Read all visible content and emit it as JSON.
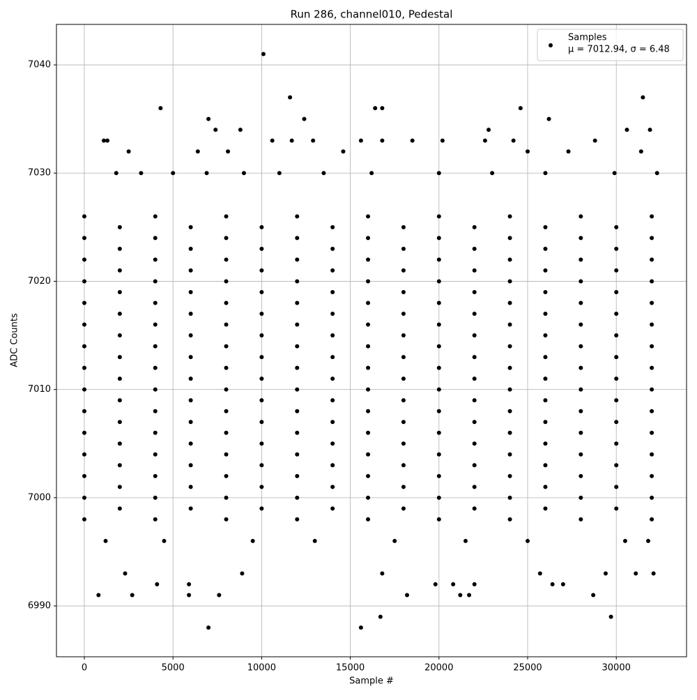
{
  "chart_data": {
    "type": "scatter",
    "title": "Run 286, channel010, Pedestal",
    "x_label": "Sample #",
    "y_label": "ADC Counts",
    "xlim": [
      -1572,
      33962
    ],
    "ylim": [
      6985.3,
      7043.74
    ],
    "xticks": [
      0,
      5000,
      10000,
      15000,
      20000,
      25000,
      30000
    ],
    "yticks": [
      6990,
      7000,
      7010,
      7020,
      7030,
      7040
    ],
    "grid": true,
    "legend_position": "upper right",
    "series": [
      {
        "name": "Samples",
        "stats_label": "μ = 7012.94, σ = 6.48",
        "color": "#000000",
        "x": [
          10100,
          11600,
          31500,
          4300,
          16400,
          16800,
          24600,
          7000,
          12400,
          26200,
          7400,
          8800,
          22800,
          30600,
          31900,
          1100,
          1300,
          10600,
          11700,
          12900,
          15600,
          16800,
          18500,
          20200,
          22600,
          24200,
          28800,
          2500,
          6400,
          8100,
          14600,
          25000,
          27300,
          31400,
          7000,
          15600,
          16700,
          29700,
          800,
          2700,
          5900,
          7600,
          18200,
          21200,
          21700,
          28700,
          2300,
          8900,
          16800,
          25700,
          29400,
          31100,
          32100,
          4100,
          5900,
          19800,
          20800,
          26400,
          27000,
          22000,
          1800,
          3200,
          5000,
          6900,
          9000,
          11000,
          13500,
          16200,
          20000,
          23000,
          26000,
          29900,
          32300,
          1200,
          4500,
          9500,
          13000,
          17500,
          21500,
          25000,
          30500,
          31800,
          0,
          4000,
          8000,
          12000,
          16000,
          20000,
          24000,
          28000,
          32000,
          0,
          4000,
          8000,
          12000,
          16000,
          20000,
          24000,
          28000,
          32000,
          0,
          4000,
          8000,
          12000,
          16000,
          20000,
          24000,
          28000,
          32000,
          0,
          4000,
          8000,
          12000,
          16000,
          20000,
          24000,
          28000,
          32000,
          0,
          4000,
          8000,
          12000,
          16000,
          20000,
          24000,
          28000,
          32000,
          0,
          4000,
          8000,
          12000,
          16000,
          20000,
          24000,
          28000,
          32000,
          0,
          4000,
          8000,
          12000,
          16000,
          20000,
          24000,
          28000,
          32000,
          0,
          4000,
          8000,
          12000,
          16000,
          20000,
          24000,
          28000,
          32000,
          0,
          4000,
          8000,
          12000,
          16000,
          20000,
          24000,
          28000,
          32000,
          0,
          4000,
          8000,
          12000,
          16000,
          20000,
          24000,
          28000,
          32000,
          0,
          4000,
          8000,
          12000,
          16000,
          20000,
          24000,
          28000,
          32000,
          0,
          4000,
          8000,
          12000,
          16000,
          20000,
          24000,
          28000,
          32000,
          0,
          4000,
          8000,
          12000,
          16000,
          20000,
          24000,
          28000,
          32000,
          0,
          4000,
          8000,
          12000,
          16000,
          20000,
          24000,
          28000,
          32000,
          0,
          4000,
          8000,
          12000,
          16000,
          20000,
          24000,
          28000,
          32000,
          2000,
          6000,
          10000,
          14000,
          18000,
          22000,
          26000,
          30000,
          2000,
          6000,
          10000,
          14000,
          18000,
          22000,
          26000,
          30000,
          2000,
          6000,
          10000,
          14000,
          18000,
          22000,
          26000,
          30000,
          2000,
          6000,
          10000,
          14000,
          18000,
          22000,
          26000,
          30000,
          2000,
          6000,
          10000,
          14000,
          18000,
          22000,
          26000,
          30000,
          2000,
          6000,
          10000,
          14000,
          18000,
          22000,
          26000,
          30000,
          2000,
          6000,
          10000,
          14000,
          18000,
          22000,
          26000,
          30000,
          2000,
          6000,
          10000,
          14000,
          18000,
          22000,
          26000,
          30000,
          2000,
          6000,
          10000,
          14000,
          18000,
          22000,
          26000,
          30000,
          2000,
          6000,
          10000,
          14000,
          18000,
          22000,
          26000,
          30000,
          2000,
          6000,
          10000,
          14000,
          18000,
          22000,
          26000,
          30000,
          2000,
          6000,
          10000,
          14000,
          18000,
          22000,
          26000,
          30000,
          2000,
          6000,
          10000,
          14000,
          18000,
          22000,
          26000,
          30000,
          2000,
          6000,
          10000,
          14000,
          18000,
          22000,
          26000,
          30000
        ],
        "values": [
          7041,
          7037,
          7037,
          7036,
          7036,
          7036,
          7036,
          7035,
          7035,
          7035,
          7034,
          7034,
          7034,
          7034,
          7034,
          7033,
          7033,
          7033,
          7033,
          7033,
          7033,
          7033,
          7033,
          7033,
          7033,
          7033,
          7033,
          7032,
          7032,
          7032,
          7032,
          7032,
          7032,
          7032,
          6988,
          6988,
          6989,
          6989,
          6991,
          6991,
          6991,
          6991,
          6991,
          6991,
          6991,
          6991,
          6993,
          6993,
          6993,
          6993,
          6993,
          6993,
          6993,
          6992,
          6992,
          6992,
          6992,
          6992,
          6992,
          6992,
          7030,
          7030,
          7030,
          7030,
          7030,
          7030,
          7030,
          7030,
          7030,
          7030,
          7030,
          7030,
          7030,
          6996,
          6996,
          6996,
          6996,
          6996,
          6996,
          6996,
          6996,
          6996,
          6998,
          6998,
          6998,
          6998,
          6998,
          6998,
          6998,
          6998,
          6998,
          7000,
          7000,
          7000,
          7000,
          7000,
          7000,
          7000,
          7000,
          7000,
          7002,
          7002,
          7002,
          7002,
          7002,
          7002,
          7002,
          7002,
          7002,
          7004,
          7004,
          7004,
          7004,
          7004,
          7004,
          7004,
          7004,
          7004,
          7006,
          7006,
          7006,
          7006,
          7006,
          7006,
          7006,
          7006,
          7006,
          7008,
          7008,
          7008,
          7008,
          7008,
          7008,
          7008,
          7008,
          7008,
          7010,
          7010,
          7010,
          7010,
          7010,
          7010,
          7010,
          7010,
          7010,
          7012,
          7012,
          7012,
          7012,
          7012,
          7012,
          7012,
          7012,
          7012,
          7014,
          7014,
          7014,
          7014,
          7014,
          7014,
          7014,
          7014,
          7014,
          7016,
          7016,
          7016,
          7016,
          7016,
          7016,
          7016,
          7016,
          7016,
          7018,
          7018,
          7018,
          7018,
          7018,
          7018,
          7018,
          7018,
          7018,
          7020,
          7020,
          7020,
          7020,
          7020,
          7020,
          7020,
          7020,
          7020,
          7022,
          7022,
          7022,
          7022,
          7022,
          7022,
          7022,
          7022,
          7022,
          7024,
          7024,
          7024,
          7024,
          7024,
          7024,
          7024,
          7024,
          7024,
          7026,
          7026,
          7026,
          7026,
          7026,
          7026,
          7026,
          7026,
          7026,
          6999,
          6999,
          6999,
          6999,
          6999,
          6999,
          6999,
          6999,
          7001,
          7001,
          7001,
          7001,
          7001,
          7001,
          7001,
          7001,
          7003,
          7003,
          7003,
          7003,
          7003,
          7003,
          7003,
          7003,
          7005,
          7005,
          7005,
          7005,
          7005,
          7005,
          7005,
          7005,
          7007,
          7007,
          7007,
          7007,
          7007,
          7007,
          7007,
          7007,
          7009,
          7009,
          7009,
          7009,
          7009,
          7009,
          7009,
          7009,
          7011,
          7011,
          7011,
          7011,
          7011,
          7011,
          7011,
          7011,
          7013,
          7013,
          7013,
          7013,
          7013,
          7013,
          7013,
          7013,
          7015,
          7015,
          7015,
          7015,
          7015,
          7015,
          7015,
          7015,
          7017,
          7017,
          7017,
          7017,
          7017,
          7017,
          7017,
          7017,
          7019,
          7019,
          7019,
          7019,
          7019,
          7019,
          7019,
          7019,
          7021,
          7021,
          7021,
          7021,
          7021,
          7021,
          7021,
          7021,
          7023,
          7023,
          7023,
          7023,
          7023,
          7023,
          7023,
          7023,
          7025,
          7025,
          7025,
          7025,
          7025,
          7025,
          7025,
          7025
        ]
      }
    ]
  }
}
